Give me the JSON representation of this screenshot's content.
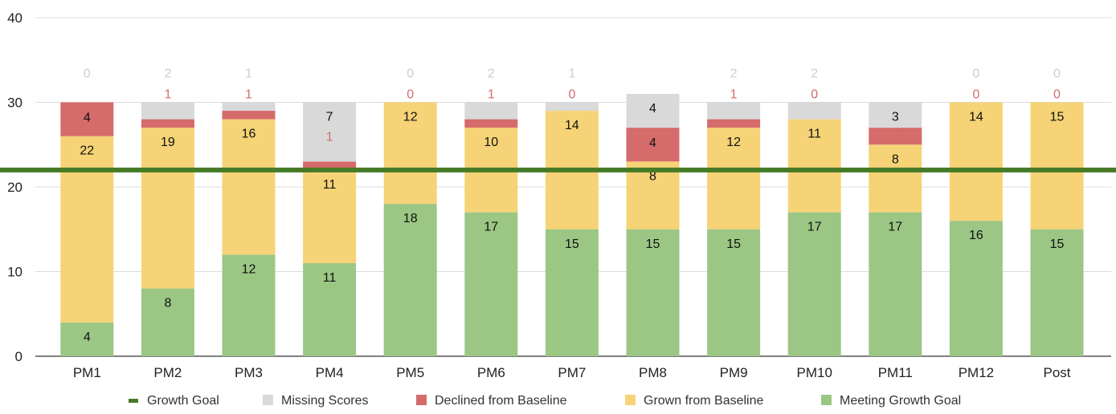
{
  "chart_data": {
    "type": "bar",
    "stacked": true,
    "categories": [
      "PM1",
      "PM2",
      "PM3",
      "PM4",
      "PM5",
      "PM6",
      "PM7",
      "PM8",
      "PM9",
      "PM10",
      "PM11",
      "PM12",
      "Post"
    ],
    "ylim": [
      0,
      40
    ],
    "yticks": [
      0,
      10,
      20,
      30,
      40
    ],
    "grid": true,
    "legend_position": "bottom",
    "series": [
      {
        "name": "Meeting Growth Goal",
        "color": "#9bc684",
        "values": [
          4,
          8,
          12,
          11,
          18,
          17,
          15,
          15,
          15,
          17,
          17,
          16,
          15
        ]
      },
      {
        "name": "Grown from Baseline",
        "color": "#f5d376",
        "values": [
          22,
          19,
          16,
          11,
          12,
          10,
          14,
          8,
          12,
          11,
          8,
          14,
          15
        ]
      },
      {
        "name": "Declined from Baseline",
        "color": "#d56b6b",
        "values": [
          4,
          1,
          1,
          1,
          0,
          1,
          0,
          4,
          1,
          0,
          2,
          0,
          0
        ]
      },
      {
        "name": "Missing Scores",
        "color": "#d9d9d9",
        "values": [
          0,
          2,
          1,
          7,
          0,
          2,
          1,
          4,
          2,
          2,
          3,
          0,
          0
        ]
      }
    ],
    "growth_goal": {
      "name": "Growth Goal",
      "value": 22,
      "color": "#467a26"
    }
  }
}
